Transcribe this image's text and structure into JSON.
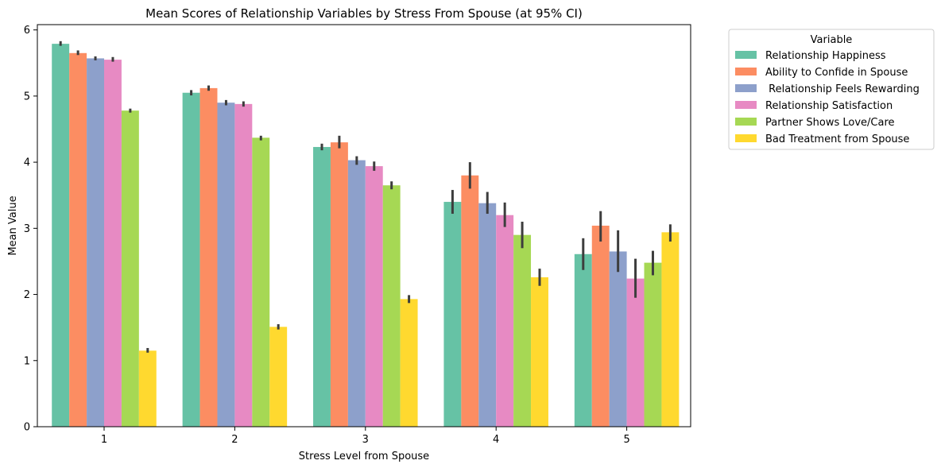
{
  "chart_data": {
    "type": "bar",
    "title": "Mean Scores of Relationship Variables by Stress From Spouse (at 95% CI)",
    "xlabel": "Stress Level from Spouse",
    "ylabel": "Mean Value",
    "ylim": [
      0,
      6.08
    ],
    "yticks": [
      0,
      1,
      2,
      3,
      4,
      5,
      6
    ],
    "categories": [
      "1",
      "2",
      "3",
      "4",
      "5"
    ],
    "legend": {
      "title": "Variable",
      "placement": "outside-top-right"
    },
    "error_bars": "95% CI",
    "series": [
      {
        "name": "Relationship Happiness",
        "color": "#66c2a5",
        "values": [
          5.79,
          5.05,
          4.23,
          3.4,
          2.61
        ],
        "ci_low": [
          5.76,
          5.01,
          4.18,
          3.22,
          2.37
        ],
        "ci_high": [
          5.83,
          5.09,
          4.28,
          3.58,
          2.85
        ]
      },
      {
        "name": "Ability to Confide in Spouse",
        "color": "#fc8d62",
        "values": [
          5.65,
          5.12,
          4.3,
          3.8,
          3.04
        ],
        "ci_low": [
          5.62,
          5.08,
          4.21,
          3.6,
          2.8
        ],
        "ci_high": [
          5.69,
          5.16,
          4.4,
          4.0,
          3.26
        ]
      },
      {
        "name": " Relationship Feels Rewarding",
        "color": "#8da0cb",
        "values": [
          5.57,
          4.9,
          4.03,
          3.38,
          2.65
        ],
        "ci_low": [
          5.54,
          4.86,
          3.96,
          3.22,
          2.34
        ],
        "ci_high": [
          5.6,
          4.94,
          4.09,
          3.55,
          2.97
        ]
      },
      {
        "name": "Relationship Satisfaction",
        "color": "#e78ac3",
        "values": [
          5.55,
          4.88,
          3.94,
          3.2,
          2.24
        ],
        "ci_low": [
          5.52,
          4.84,
          3.87,
          3.02,
          1.95
        ],
        "ci_high": [
          5.59,
          4.92,
          4.01,
          3.39,
          2.54
        ]
      },
      {
        "name": "Partner Shows Love/Care",
        "color": "#a6d854",
        "values": [
          4.78,
          4.37,
          3.65,
          2.9,
          2.48
        ],
        "ci_low": [
          4.75,
          4.33,
          3.59,
          2.7,
          2.29
        ],
        "ci_high": [
          4.81,
          4.4,
          3.71,
          3.1,
          2.66
        ]
      },
      {
        "name": "Bad Treatment from Spouse",
        "color": "#ffd92f",
        "values": [
          1.15,
          1.51,
          1.93,
          2.26,
          2.94
        ],
        "ci_low": [
          1.12,
          1.47,
          1.87,
          2.13,
          2.8
        ],
        "ci_high": [
          1.19,
          1.55,
          1.99,
          2.39,
          3.06
        ]
      }
    ]
  }
}
